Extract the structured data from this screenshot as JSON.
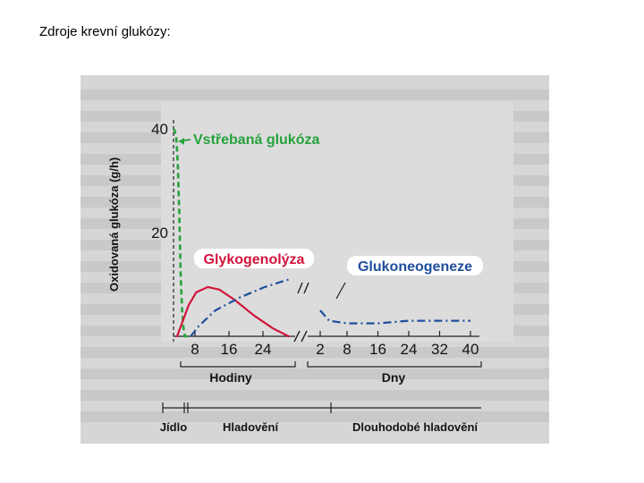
{
  "page": {
    "title": "Zdroje krevní glukózy:"
  },
  "chart_data": {
    "type": "line",
    "ylabel": "Oxidovaná glukóza (g/h)",
    "yticks": [
      20,
      40
    ],
    "ylim": [
      0,
      44
    ],
    "x_segments": [
      {
        "unit": "Hodiny",
        "ticks": [
          8,
          16,
          24
        ]
      },
      {
        "unit": "Dny",
        "ticks": [
          2,
          8,
          16,
          24,
          32,
          40
        ]
      }
    ],
    "phases": [
      "Jídlo",
      "Hladovění",
      "Dlouhodobé hladovění"
    ],
    "series": [
      {
        "name": "Vstřebaná glukóza",
        "color": "#27a13c",
        "style": "dashed",
        "segment": "Hodiny",
        "points": [
          [
            -8,
            40
          ],
          [
            -7,
            39.5
          ],
          [
            -6,
            38
          ],
          [
            -5,
            33
          ],
          [
            -4,
            24
          ],
          [
            -3,
            12
          ],
          [
            -2,
            5
          ],
          [
            -1,
            1.5
          ],
          [
            0,
            0
          ],
          [
            2,
            0
          ]
        ]
      },
      {
        "name": "Glykogenolýza",
        "color": "#d2143c",
        "style": "solid",
        "segment": "Hodiny",
        "points": [
          [
            -1,
            0
          ],
          [
            2,
            6
          ],
          [
            4,
            8.5
          ],
          [
            7,
            9.5
          ],
          [
            10,
            9
          ],
          [
            14,
            7
          ],
          [
            19,
            4
          ],
          [
            24,
            1.5
          ],
          [
            28,
            0
          ]
        ]
      },
      {
        "name": "Glukoneogeneze",
        "color": "#1e4f9c",
        "style": "dashdot",
        "segment": "Hodiny+Dny",
        "points_hours": [
          [
            2,
            0
          ],
          [
            4,
            2
          ],
          [
            8,
            5
          ],
          [
            14,
            7.5
          ],
          [
            20,
            9.5
          ],
          [
            26,
            11
          ]
        ],
        "points_days": [
          [
            2,
            5
          ],
          [
            4,
            3
          ],
          [
            8,
            2.5
          ],
          [
            16,
            2.5
          ],
          [
            24,
            3
          ],
          [
            32,
            3
          ],
          [
            40,
            3
          ]
        ]
      }
    ]
  }
}
